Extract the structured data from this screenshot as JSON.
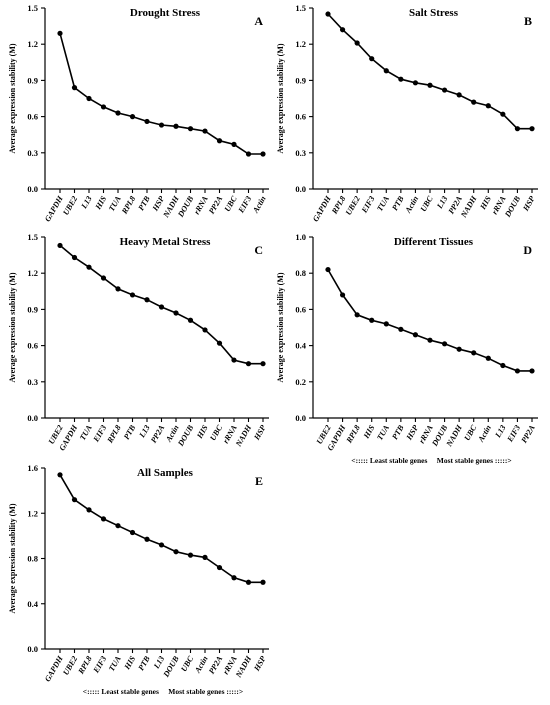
{
  "chart_data": [
    {
      "type": "line",
      "title": "Drought Stress",
      "panel": "A",
      "ylabel": "Average expression stability (M)",
      "ylim": [
        0,
        1.5
      ],
      "yticks": [
        "0.0",
        "0.3",
        "0.6",
        "0.9",
        "1.2",
        "1.5"
      ],
      "categories": [
        "GAPDH",
        "UBE2",
        "L13",
        "HIS",
        "TUA",
        "RPL8",
        "PTB",
        "HSP",
        "NADH",
        "DOUB",
        "rRNA",
        "PP2A",
        "UBC",
        "EIF3",
        "Actin"
      ],
      "values": [
        1.29,
        0.84,
        0.75,
        0.68,
        0.63,
        0.6,
        0.56,
        0.53,
        0.52,
        0.5,
        0.48,
        0.4,
        0.37,
        0.29,
        0.29
      ]
    },
    {
      "type": "line",
      "title": "Salt Stress",
      "panel": "B",
      "ylabel": "Average expression stability (M)",
      "ylim": [
        0,
        1.5
      ],
      "yticks": [
        "0.0",
        "0.3",
        "0.6",
        "0.9",
        "1.2",
        "1.5"
      ],
      "categories": [
        "GAPDH",
        "RPL8",
        "UBE2",
        "EIF3",
        "TUA",
        "PTB",
        "Actin",
        "UBC",
        "L13",
        "PP2A",
        "NADH",
        "HIS",
        "rRNA",
        "DOUB",
        "HSP"
      ],
      "values": [
        1.45,
        1.32,
        1.21,
        1.08,
        0.98,
        0.91,
        0.88,
        0.86,
        0.82,
        0.78,
        0.72,
        0.69,
        0.62,
        0.5,
        0.5
      ]
    },
    {
      "type": "line",
      "title": "Heavy Metal Stress",
      "panel": "C",
      "ylabel": "Average expression stability (M)",
      "ylim": [
        0,
        1.5
      ],
      "yticks": [
        "0.0",
        "0.3",
        "0.6",
        "0.9",
        "1.2",
        "1.5"
      ],
      "categories": [
        "UBE2",
        "GAPDH",
        "TUA",
        "EIF3",
        "RPL8",
        "PTB",
        "L13",
        "PP2A",
        "Actin",
        "DOUB",
        "HIS",
        "UBC",
        "rRNA",
        "NADH",
        "HSP"
      ],
      "values": [
        1.43,
        1.33,
        1.25,
        1.16,
        1.07,
        1.02,
        0.98,
        0.92,
        0.87,
        0.81,
        0.73,
        0.62,
        0.48,
        0.45,
        0.45
      ]
    },
    {
      "type": "line",
      "title": "Different Tissues",
      "panel": "D",
      "ylabel": "Average expression stability (M)",
      "ylim": [
        0,
        1.0
      ],
      "yticks": [
        "0.0",
        "0.2",
        "0.4",
        "0.6",
        "0.8",
        "1.0"
      ],
      "categories": [
        "UBE2",
        "GAPDH",
        "RPL8",
        "HIS",
        "TUA",
        "PTB",
        "HSP",
        "rRNA",
        "DOUB",
        "NADH",
        "UBC",
        "Actin",
        "L13",
        "EIF3",
        "PP2A"
      ],
      "values": [
        0.82,
        0.68,
        0.57,
        0.54,
        0.52,
        0.49,
        0.46,
        0.43,
        0.41,
        0.38,
        0.36,
        0.33,
        0.29,
        0.26,
        0.26
      ],
      "note": "<::::: Least stable genes     Most stable genes :::::>"
    },
    {
      "type": "line",
      "title": "All Samples",
      "panel": "E",
      "ylabel": "Average expression stability (M)",
      "ylim": [
        0,
        1.6
      ],
      "yticks": [
        "0.0",
        "0.4",
        "0.8",
        "1.2",
        "1.6"
      ],
      "categories": [
        "GAPDH",
        "UBE2",
        "RPL8",
        "EIF3",
        "TUA",
        "HIS",
        "PTB",
        "L13",
        "DOUB",
        "UBC",
        "Actin",
        "PP2A",
        "rRNA",
        "NADH",
        "HSP"
      ],
      "values": [
        1.54,
        1.32,
        1.23,
        1.15,
        1.09,
        1.03,
        0.97,
        0.92,
        0.86,
        0.83,
        0.81,
        0.72,
        0.63,
        0.59,
        0.59
      ],
      "note": "<::::: Least stable genes     Most stable genes :::::>"
    }
  ]
}
